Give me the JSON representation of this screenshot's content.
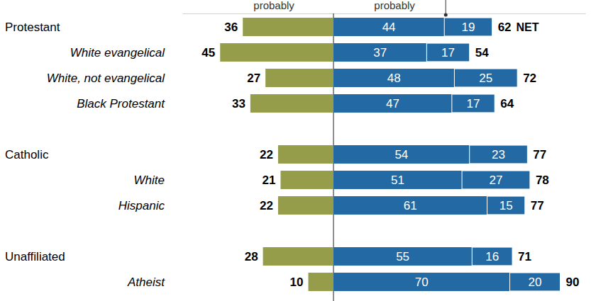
{
  "chart_data": {
    "type": "bar",
    "orientation": "horizontal",
    "stacked": true,
    "data_labels": true,
    "tick_labels": false,
    "categories": [
      "Protestant",
      "White evangelical",
      "White, not evangelical",
      "Black Protestant",
      null,
      "Catholic",
      "White",
      "Hispanic",
      null,
      "Unaffiliated",
      "Atheist"
    ],
    "series": [
      {
        "name": "probably",
        "color": "#959c4a",
        "values": [
          36,
          45,
          27,
          33,
          null,
          22,
          21,
          22,
          null,
          28,
          10
        ]
      },
      {
        "name": "probably",
        "color": "#2369a3",
        "values": [
          44,
          37,
          48,
          47,
          null,
          54,
          51,
          61,
          null,
          55,
          70
        ]
      },
      {
        "color": "#2369a3",
        "values": [
          19,
          17,
          25,
          17,
          null,
          23,
          27,
          15,
          null,
          16,
          20
        ]
      }
    ],
    "net": [
      62,
      54,
      72,
      64,
      null,
      77,
      78,
      77,
      null,
      71,
      90
    ],
    "net_label": "NET",
    "xlim": [
      -60,
      100
    ],
    "xticks": [
      0
    ]
  }
}
